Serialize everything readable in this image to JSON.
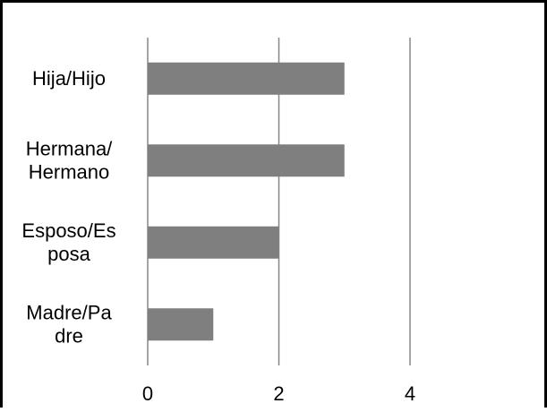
{
  "chart_data": {
    "type": "bar",
    "orientation": "horizontal",
    "title": "",
    "xlabel": "",
    "ylabel": "",
    "categories": [
      [
        "Hija/Hijo"
      ],
      [
        "Hermana/",
        "Hermano"
      ],
      [
        "Esposo/Es",
        "posa"
      ],
      [
        "Madre/Pa",
        "dre"
      ]
    ],
    "values": [
      3,
      3,
      2,
      1
    ],
    "xlim": [
      0,
      4
    ],
    "xticks": [
      "0",
      "2",
      "4"
    ],
    "grid": true,
    "legend": "none",
    "colors": {
      "bar": "#7f7f7f",
      "grid": "#878787",
      "border": "#000000"
    }
  }
}
